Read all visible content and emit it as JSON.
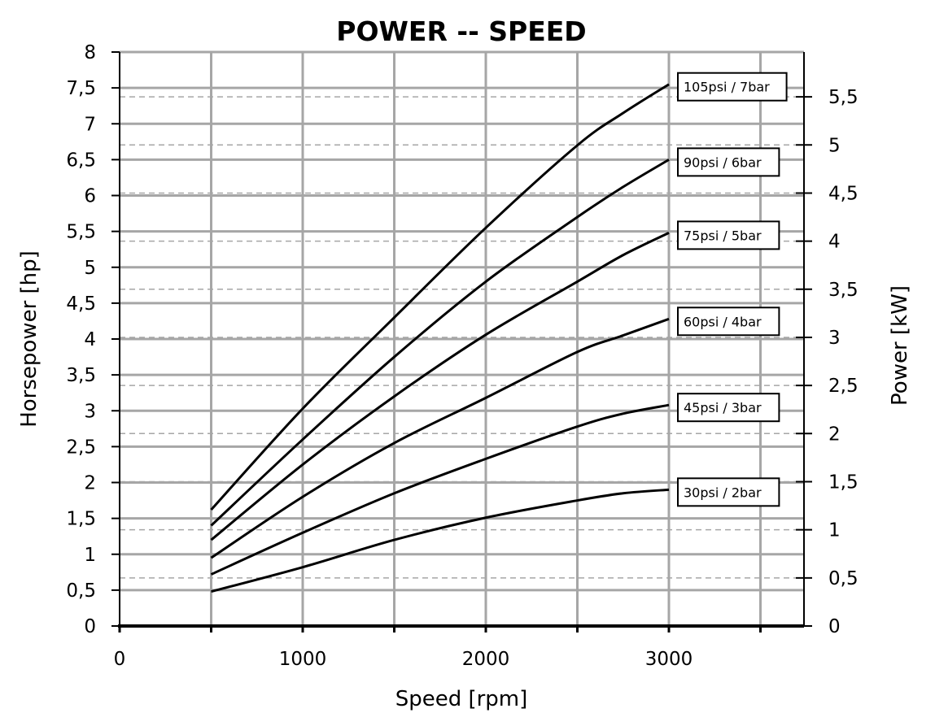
{
  "chart_data": {
    "type": "line",
    "title": "POWER -- SPEED",
    "xlabel": "Speed [rpm]",
    "ylabel": "Horsepower [hp]",
    "y2label": "Power [kW]",
    "xlim": [
      0,
      3750
    ],
    "ylim": [
      0,
      8
    ],
    "y2lim": [
      0,
      5.966
    ],
    "x_ticks": [
      0,
      500,
      1000,
      1500,
      2000,
      2500,
      3000,
      3500
    ],
    "x_tick_labels": [
      {
        "value": 0,
        "label": "0"
      },
      {
        "value": 1000,
        "label": "1000"
      },
      {
        "value": 2000,
        "label": "2000"
      },
      {
        "value": 3000,
        "label": "3000"
      }
    ],
    "y_ticks": [
      {
        "value": 0,
        "label": "0"
      },
      {
        "value": 0.5,
        "label": "0,5"
      },
      {
        "value": 1,
        "label": "1"
      },
      {
        "value": 1.5,
        "label": "1,5"
      },
      {
        "value": 2,
        "label": "2"
      },
      {
        "value": 2.5,
        "label": "2,5"
      },
      {
        "value": 3,
        "label": "3"
      },
      {
        "value": 3.5,
        "label": "3,5"
      },
      {
        "value": 4,
        "label": "4"
      },
      {
        "value": 4.5,
        "label": "4,5"
      },
      {
        "value": 5,
        "label": "5"
      },
      {
        "value": 5.5,
        "label": "5,5"
      },
      {
        "value": 6,
        "label": "6"
      },
      {
        "value": 6.5,
        "label": "6,5"
      },
      {
        "value": 7,
        "label": "7"
      },
      {
        "value": 7.5,
        "label": "7,5"
      },
      {
        "value": 8,
        "label": "8"
      }
    ],
    "y2_ticks": [
      {
        "value": 0,
        "label": "0"
      },
      {
        "value": 0.5,
        "label": "0,5"
      },
      {
        "value": 1,
        "label": "1"
      },
      {
        "value": 1.5,
        "label": "1,5"
      },
      {
        "value": 2,
        "label": "2"
      },
      {
        "value": 2.5,
        "label": "2,5"
      },
      {
        "value": 3,
        "label": "3"
      },
      {
        "value": 3.5,
        "label": "3,5"
      },
      {
        "value": 4,
        "label": "4"
      },
      {
        "value": 4.5,
        "label": "4,5"
      },
      {
        "value": 5,
        "label": "5"
      },
      {
        "value": 5.5,
        "label": "5,5"
      }
    ],
    "kw_per_hp": 0.7457,
    "grid": {
      "major_solid": true,
      "secondary_dashed_kw": true
    },
    "x": [
      500,
      1000,
      1500,
      2000,
      2500,
      2750,
      3000
    ],
    "series": [
      {
        "name": "105psi / 7bar",
        "values": [
          1.62,
          3.03,
          4.3,
          5.55,
          6.7,
          7.15,
          7.55
        ]
      },
      {
        "name": "90psi / 6bar",
        "values": [
          1.4,
          2.6,
          3.75,
          4.8,
          5.7,
          6.12,
          6.5
        ]
      },
      {
        "name": "75psi / 5bar",
        "values": [
          1.2,
          2.25,
          3.2,
          4.06,
          4.8,
          5.17,
          5.48
        ]
      },
      {
        "name": "60psi / 4bar",
        "values": [
          0.95,
          1.8,
          2.55,
          3.18,
          3.82,
          4.05,
          4.28
        ]
      },
      {
        "name": "45psi / 3bar",
        "values": [
          0.72,
          1.3,
          1.85,
          2.33,
          2.78,
          2.96,
          3.08
        ]
      },
      {
        "name": "30psi / 2bar",
        "values": [
          0.48,
          0.82,
          1.2,
          1.51,
          1.75,
          1.85,
          1.9
        ]
      }
    ]
  },
  "colors": {
    "grid": "#a6a6a6",
    "axis": "#000000",
    "line": "#000000",
    "background": "#ffffff"
  }
}
